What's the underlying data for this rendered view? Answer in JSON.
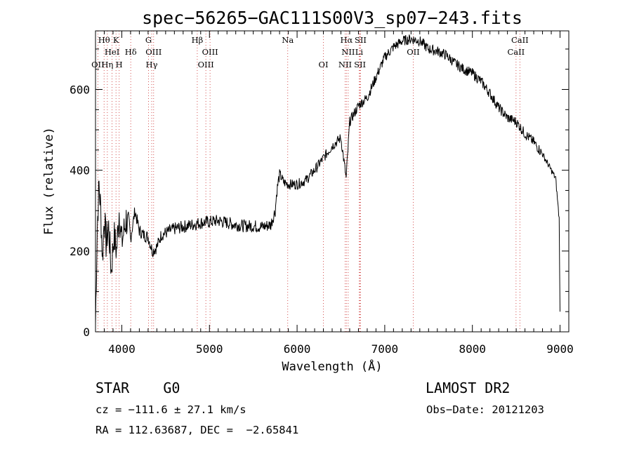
{
  "chart_data": {
    "type": "line",
    "title": "spec−56265−GAC111S00V3_sp07−243.fits",
    "xlabel": "Wavelength (Å)",
    "ylabel": "Flux (relative)",
    "xlim": [
      3700,
      9100
    ],
    "ylim": [
      0,
      745
    ],
    "x_ticks": [
      4000,
      5000,
      6000,
      7000,
      8000,
      9000
    ],
    "y_ticks": [
      0,
      200,
      400,
      600
    ],
    "series": [
      {
        "x": [
          3700,
          3720,
          3740,
          3760,
          3780,
          3800,
          3820,
          3850,
          3880,
          3910,
          3940,
          3970,
          4000,
          4050,
          4100,
          4150,
          4200,
          4250,
          4300,
          4350,
          4400,
          4450,
          4500,
          4600,
          4700,
          4800,
          4900,
          5000,
          5100,
          5200,
          5300,
          5400,
          5500,
          5600,
          5700,
          5750,
          5770,
          5800,
          5850,
          5900,
          6000,
          6100,
          6200,
          6300,
          6400,
          6500,
          6560,
          6600,
          6700,
          6800,
          6900,
          7000,
          7100,
          7200,
          7300,
          7400,
          7500,
          7600,
          7700,
          7800,
          7900,
          8000,
          8100,
          8200,
          8300,
          8400,
          8500,
          8600,
          8700,
          8800,
          8900,
          8950,
          8970,
          8990,
          9000
        ],
        "y": [
          20,
          260,
          365,
          300,
          180,
          290,
          220,
          260,
          150,
          240,
          200,
          300,
          220,
          280,
          230,
          300,
          250,
          240,
          235,
          200,
          210,
          240,
          245,
          255,
          260,
          265,
          270,
          272,
          275,
          270,
          265,
          262,
          262,
          260,
          265,
          300,
          350,
          390,
          370,
          365,
          365,
          375,
          400,
          430,
          460,
          480,
          380,
          520,
          560,
          580,
          630,
          680,
          705,
          720,
          725,
          720,
          700,
          695,
          685,
          665,
          650,
          640,
          620,
          590,
          555,
          530,
          520,
          490,
          470,
          440,
          400,
          380,
          330,
          280,
          50
        ]
      }
    ]
  },
  "spectral_lines": [
    {
      "label": "Hθ",
      "wavelength": 3798,
      "row": 0
    },
    {
      "label": "K",
      "wavelength": 3934,
      "row": 0
    },
    {
      "label": "HeI",
      "wavelength": 3889,
      "row": 1
    },
    {
      "label": "Hδ",
      "wavelength": 4102,
      "row": 1
    },
    {
      "label": "OII",
      "wavelength": 3727,
      "row": 2
    },
    {
      "label": "Hη",
      "wavelength": 3835,
      "row": 2
    },
    {
      "label": "H",
      "wavelength": 3970,
      "row": 2
    },
    {
      "label": "G",
      "wavelength": 4305,
      "row": 0
    },
    {
      "label": "OIII",
      "wavelength": 4363,
      "row": 1
    },
    {
      "label": "Hγ",
      "wavelength": 4341,
      "row": 2
    },
    {
      "label": "Hβ",
      "wavelength": 4861,
      "row": 0
    },
    {
      "label": "OIII",
      "wavelength": 5007,
      "row": 1
    },
    {
      "label": "OIII",
      "wavelength": 4959,
      "row": 2
    },
    {
      "label": "Na",
      "wavelength": 5893,
      "row": 0
    },
    {
      "label": "OI",
      "wavelength": 6300,
      "row": 2
    },
    {
      "label": "Hα",
      "wavelength": 6563,
      "row": 0
    },
    {
      "label": "SII",
      "wavelength": 6724,
      "row": 0
    },
    {
      "label": "NII",
      "wavelength": 6583,
      "row": 1
    },
    {
      "label": "Li",
      "wavelength": 6708,
      "row": 1
    },
    {
      "label": "NII",
      "wavelength": 6548,
      "row": 2
    },
    {
      "label": "SII",
      "wavelength": 6717,
      "row": 2
    },
    {
      "label": "OII",
      "wavelength": 7325,
      "row": 1
    },
    {
      "label": "CaII",
      "wavelength": 8542,
      "row": 0
    },
    {
      "label": "CaII",
      "wavelength": 8498,
      "row": 1
    }
  ],
  "info": {
    "class": "STAR    G0",
    "survey": "LAMOST DR2",
    "redshift": "cz = −111.6 ± 27.1 km/s",
    "obs_date": "Obs−Date: 20121203",
    "coords": "RA = 112.63687, DEC =  −2.65841"
  }
}
